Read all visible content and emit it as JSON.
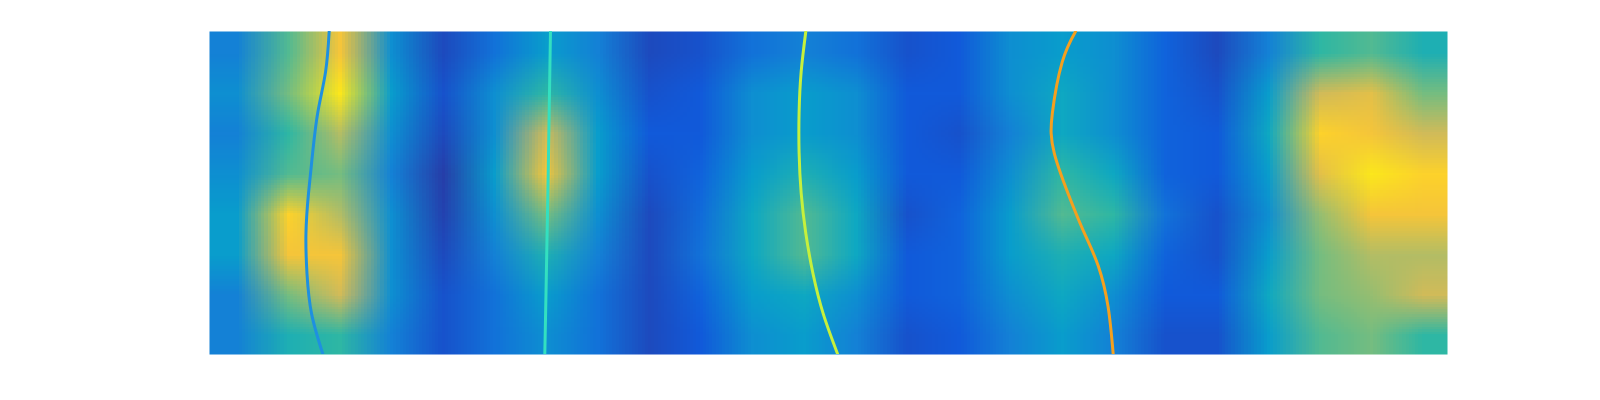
{
  "chart_data": {
    "type": "heatmap",
    "tick_labels": false,
    "xlim": [
      0,
      24
    ],
    "ylim": [
      0,
      8
    ],
    "clim": [
      0,
      1
    ],
    "cells": [
      [
        0.25,
        0.55,
        0.85,
        0.3,
        0.08,
        0.2,
        0.35,
        0.25,
        0.08,
        0.1,
        0.2,
        0.25,
        0.2,
        0.1,
        0.12,
        0.3,
        0.35,
        0.3,
        0.15,
        0.08,
        0.25,
        0.5,
        0.55,
        0.45
      ],
      [
        0.3,
        0.6,
        0.95,
        0.35,
        0.1,
        0.3,
        0.5,
        0.3,
        0.1,
        0.12,
        0.3,
        0.35,
        0.3,
        0.12,
        0.12,
        0.3,
        0.4,
        0.3,
        0.15,
        0.1,
        0.35,
        0.75,
        0.8,
        0.6
      ],
      [
        0.25,
        0.5,
        0.7,
        0.3,
        0.08,
        0.3,
        0.75,
        0.35,
        0.12,
        0.12,
        0.3,
        0.35,
        0.3,
        0.12,
        0.1,
        0.25,
        0.4,
        0.3,
        0.15,
        0.12,
        0.4,
        0.9,
        0.85,
        0.75
      ],
      [
        0.3,
        0.55,
        0.6,
        0.25,
        0.05,
        0.35,
        0.85,
        0.35,
        0.1,
        0.15,
        0.35,
        0.45,
        0.35,
        0.12,
        0.12,
        0.3,
        0.5,
        0.4,
        0.15,
        0.12,
        0.35,
        0.8,
        0.95,
        0.9
      ],
      [
        0.35,
        0.9,
        0.7,
        0.3,
        0.06,
        0.3,
        0.6,
        0.3,
        0.08,
        0.18,
        0.4,
        0.55,
        0.4,
        0.1,
        0.15,
        0.35,
        0.55,
        0.5,
        0.2,
        0.1,
        0.3,
        0.65,
        0.85,
        0.85
      ],
      [
        0.35,
        0.85,
        0.85,
        0.3,
        0.08,
        0.25,
        0.45,
        0.25,
        0.08,
        0.2,
        0.4,
        0.55,
        0.4,
        0.12,
        0.15,
        0.35,
        0.45,
        0.4,
        0.15,
        0.1,
        0.35,
        0.6,
        0.7,
        0.7
      ],
      [
        0.25,
        0.6,
        0.75,
        0.3,
        0.1,
        0.2,
        0.35,
        0.2,
        0.08,
        0.15,
        0.35,
        0.4,
        0.3,
        0.12,
        0.15,
        0.3,
        0.4,
        0.3,
        0.12,
        0.12,
        0.4,
        0.6,
        0.65,
        0.75
      ],
      [
        0.25,
        0.45,
        0.5,
        0.25,
        0.1,
        0.2,
        0.3,
        0.2,
        0.08,
        0.12,
        0.3,
        0.35,
        0.25,
        0.1,
        0.12,
        0.25,
        0.35,
        0.25,
        0.1,
        0.1,
        0.35,
        0.55,
        0.6,
        0.5
      ]
    ],
    "series": [
      {
        "type": "line",
        "color": "#1e90e0",
        "x": [
          2.2,
          1.98,
          1.89,
          1.87,
          1.92,
          2.0,
          2.1,
          2.25,
          2.32
        ],
        "y": [
          0,
          1,
          2,
          3,
          4,
          5,
          6,
          7,
          8
        ]
      },
      {
        "type": "line",
        "color": "#33e0c0",
        "x": [
          6.5,
          6.56,
          6.61
        ],
        "y": [
          0,
          4,
          8
        ]
      },
      {
        "type": "line",
        "color": "#c6f03c",
        "x": [
          12.18,
          11.9,
          11.7,
          11.56,
          11.47,
          11.43,
          11.43,
          11.47,
          11.56
        ],
        "y": [
          0,
          1,
          2,
          3,
          4,
          5,
          6,
          7,
          8
        ]
      },
      {
        "type": "line",
        "color": "#f5a01e",
        "x": [
          17.52,
          17.42,
          17.23,
          16.98,
          16.73,
          16.38,
          16.34,
          16.53,
          16.79
        ],
        "y": [
          0,
          1.18,
          2.19,
          2.95,
          3.71,
          4.97,
          5.98,
          7.24,
          8
        ]
      }
    ]
  }
}
